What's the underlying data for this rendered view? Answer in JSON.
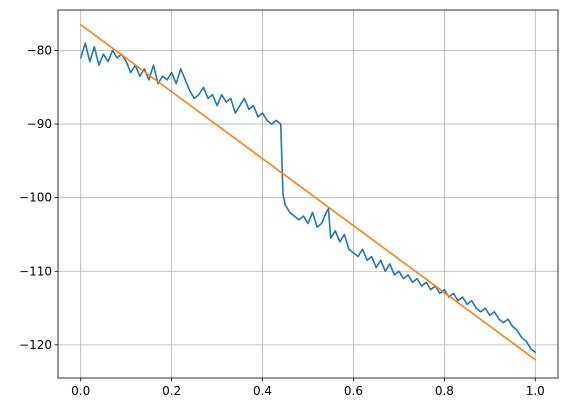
{
  "chart_data": {
    "type": "line",
    "title": "",
    "xlabel": "",
    "ylabel": "",
    "xlim": [
      -0.05,
      1.05
    ],
    "ylim": [
      -124.5,
      -74.5
    ],
    "grid": true,
    "x_ticks": [
      0.0,
      0.2,
      0.4,
      0.6,
      0.8,
      1.0
    ],
    "x_tick_labels": [
      "0.0",
      "0.2",
      "0.4",
      "0.6",
      "0.8",
      "1.0"
    ],
    "y_ticks": [
      -80,
      -90,
      -100,
      -110,
      -120
    ],
    "y_tick_labels": [
      "−80",
      "−90",
      "−100",
      "−110",
      "−120"
    ],
    "series": [
      {
        "color": "#1f77b4",
        "x": [
          0.0,
          0.01,
          0.02,
          0.03,
          0.04,
          0.05,
          0.06,
          0.07,
          0.08,
          0.09,
          0.1,
          0.11,
          0.12,
          0.13,
          0.14,
          0.15,
          0.16,
          0.17,
          0.18,
          0.19,
          0.2,
          0.21,
          0.22,
          0.23,
          0.24,
          0.25,
          0.26,
          0.27,
          0.28,
          0.29,
          0.3,
          0.31,
          0.32,
          0.33,
          0.34,
          0.35,
          0.36,
          0.37,
          0.38,
          0.39,
          0.4,
          0.41,
          0.42,
          0.43,
          0.44,
          0.445,
          0.45,
          0.46,
          0.47,
          0.48,
          0.49,
          0.5,
          0.51,
          0.52,
          0.53,
          0.54,
          0.545,
          0.55,
          0.56,
          0.57,
          0.58,
          0.59,
          0.6,
          0.61,
          0.62,
          0.63,
          0.64,
          0.65,
          0.66,
          0.67,
          0.68,
          0.69,
          0.7,
          0.71,
          0.72,
          0.73,
          0.74,
          0.75,
          0.76,
          0.77,
          0.78,
          0.79,
          0.8,
          0.81,
          0.82,
          0.83,
          0.84,
          0.85,
          0.86,
          0.87,
          0.88,
          0.89,
          0.9,
          0.91,
          0.92,
          0.93,
          0.94,
          0.95,
          0.96,
          0.97,
          0.98,
          0.99,
          1.0
        ],
        "y": [
          -81.0,
          -79.0,
          -81.5,
          -79.5,
          -82.0,
          -80.5,
          -81.5,
          -80.0,
          -81.0,
          -80.5,
          -81.5,
          -83.0,
          -82.0,
          -83.5,
          -82.5,
          -84.0,
          -82.0,
          -84.5,
          -83.5,
          -84.0,
          -83.0,
          -84.5,
          -82.5,
          -84.0,
          -85.5,
          -86.5,
          -86.0,
          -85.0,
          -86.5,
          -86.0,
          -87.5,
          -86.0,
          -87.0,
          -86.5,
          -88.5,
          -87.5,
          -86.5,
          -88.0,
          -87.5,
          -89.0,
          -88.5,
          -89.5,
          -90.0,
          -89.5,
          -90.0,
          -99.5,
          -101.0,
          -102.0,
          -102.5,
          -103.0,
          -102.5,
          -103.5,
          -102.0,
          -104.0,
          -103.5,
          -102.0,
          -101.5,
          -105.5,
          -104.5,
          -106.0,
          -105.0,
          -107.0,
          -107.5,
          -108.0,
          -107.0,
          -108.5,
          -108.0,
          -109.5,
          -108.5,
          -110.0,
          -109.0,
          -110.5,
          -110.0,
          -111.0,
          -110.5,
          -111.5,
          -111.0,
          -112.0,
          -111.5,
          -112.5,
          -112.0,
          -113.0,
          -112.5,
          -113.5,
          -113.0,
          -114.0,
          -113.5,
          -114.5,
          -114.0,
          -115.0,
          -115.5,
          -115.0,
          -116.0,
          -115.5,
          -116.5,
          -117.0,
          -116.5,
          -117.5,
          -118.0,
          -119.0,
          -119.5,
          -120.5,
          -121.0
        ]
      },
      {
        "color": "#ff7f0e",
        "x": [
          0.0,
          1.0
        ],
        "y": [
          -76.5,
          -122.0
        ]
      }
    ]
  }
}
